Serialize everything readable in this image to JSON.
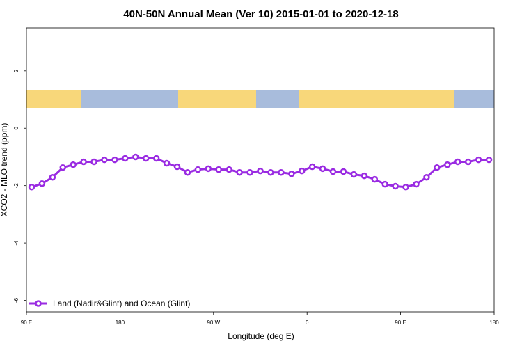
{
  "chart_data": {
    "type": "line",
    "title": "40N-50N Annual Mean (Ver 10)   2015-01-01 to 2020-12-18",
    "x_label": "Longitude (deg E)",
    "y_label": "XCO2 - MLO trend (ppm)",
    "xlim": [
      90,
      540
    ],
    "ylim": [
      -6.4,
      3.5
    ],
    "xticks": [
      {
        "value": 90,
        "label": "90 E"
      },
      180,
      {
        "value": 270,
        "label": "90 W"
      },
      {
        "value": 360,
        "label": "0"
      },
      {
        "value": 450,
        "label": "90 E"
      },
      {
        "value": 540,
        "label": "180"
      }
    ],
    "yticks": [
      2,
      0,
      -2,
      -4,
      -6
    ],
    "legend": "bottom-left",
    "series": [
      {
        "name": "Land (Nadir&Glint) and Ocean (Glint)",
        "color": "#9a2be2",
        "x": [
          95,
          105,
          115,
          125,
          135,
          145,
          155,
          165,
          175,
          185,
          195,
          205,
          215,
          225,
          235,
          245,
          255,
          265,
          275,
          285,
          295,
          305,
          315,
          325,
          335,
          345,
          355,
          365,
          375,
          385,
          395,
          405,
          415,
          425,
          435,
          445,
          455,
          465,
          475,
          485,
          495,
          505,
          515,
          525,
          535
        ],
        "values": [
          -2.05,
          -1.93,
          -1.71,
          -1.37,
          -1.27,
          -1.17,
          -1.17,
          -1.1,
          -1.1,
          -1.05,
          -1.0,
          -1.05,
          -1.05,
          -1.22,
          -1.34,
          -1.54,
          -1.44,
          -1.41,
          -1.44,
          -1.44,
          -1.54,
          -1.54,
          -1.49,
          -1.54,
          -1.54,
          -1.59,
          -1.49,
          -1.34,
          -1.41,
          -1.51,
          -1.51,
          -1.61,
          -1.66,
          -1.78,
          -1.95,
          -2.02,
          -2.05,
          -1.95,
          -1.71,
          -1.37,
          -1.27,
          -1.17,
          -1.17,
          -1.1,
          -1.1
        ]
      }
    ]
  }
}
